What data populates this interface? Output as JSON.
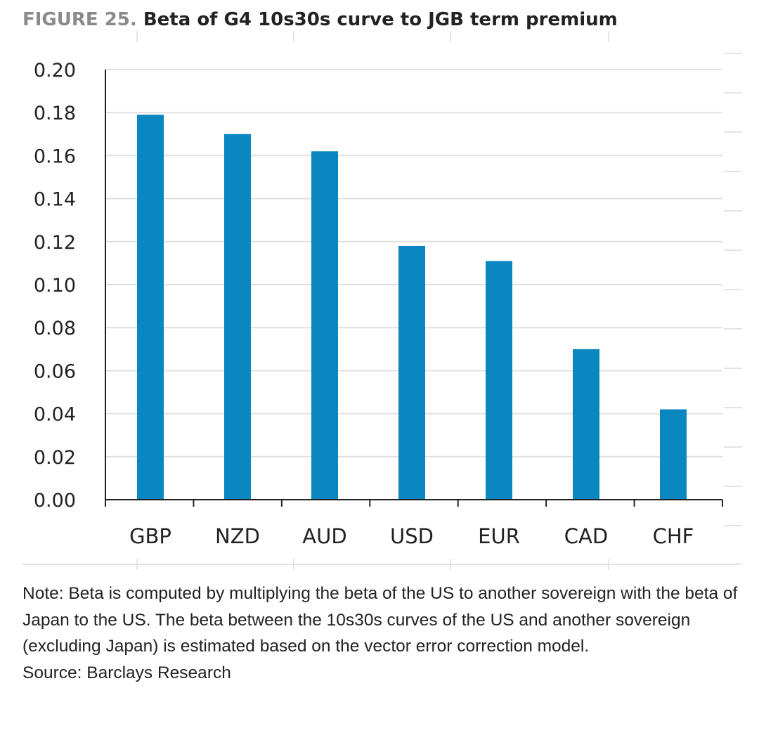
{
  "figure": {
    "label": "FIGURE 25.",
    "title": "Beta of G4 10s30s curve to JGB term premium"
  },
  "chart_data": {
    "type": "bar",
    "title": "Beta of G4 10s30s curve to JGB term premium",
    "categories": [
      "GBP",
      "NZD",
      "AUD",
      "USD",
      "EUR",
      "CAD",
      "CHF"
    ],
    "values": [
      0.179,
      0.17,
      0.162,
      0.118,
      0.111,
      0.07,
      0.042
    ],
    "ylim": [
      0,
      0.2
    ],
    "yticks": [
      "0.00",
      "0.02",
      "0.04",
      "0.06",
      "0.08",
      "0.10",
      "0.12",
      "0.14",
      "0.16",
      "0.18",
      "0.20"
    ],
    "xlabel": "",
    "ylabel": "",
    "bar_color": "#0a86c0",
    "grid": true,
    "legend": "none"
  },
  "note": {
    "text": "Note: Beta is computed by multiplying the beta of the US to another sovereign with the beta of Japan to the US. The beta between the 10s30s curves of the US and another sovereign (excluding Japan) is estimated based on the vector error correction model.",
    "source": "Source: Barclays Research"
  },
  "colors": {
    "title_label": "#8a8a8a",
    "title_text": "#222222",
    "bar": "#0a86c0",
    "grid": "#e0e0e0",
    "axis": "#222222",
    "text": "#222222"
  }
}
